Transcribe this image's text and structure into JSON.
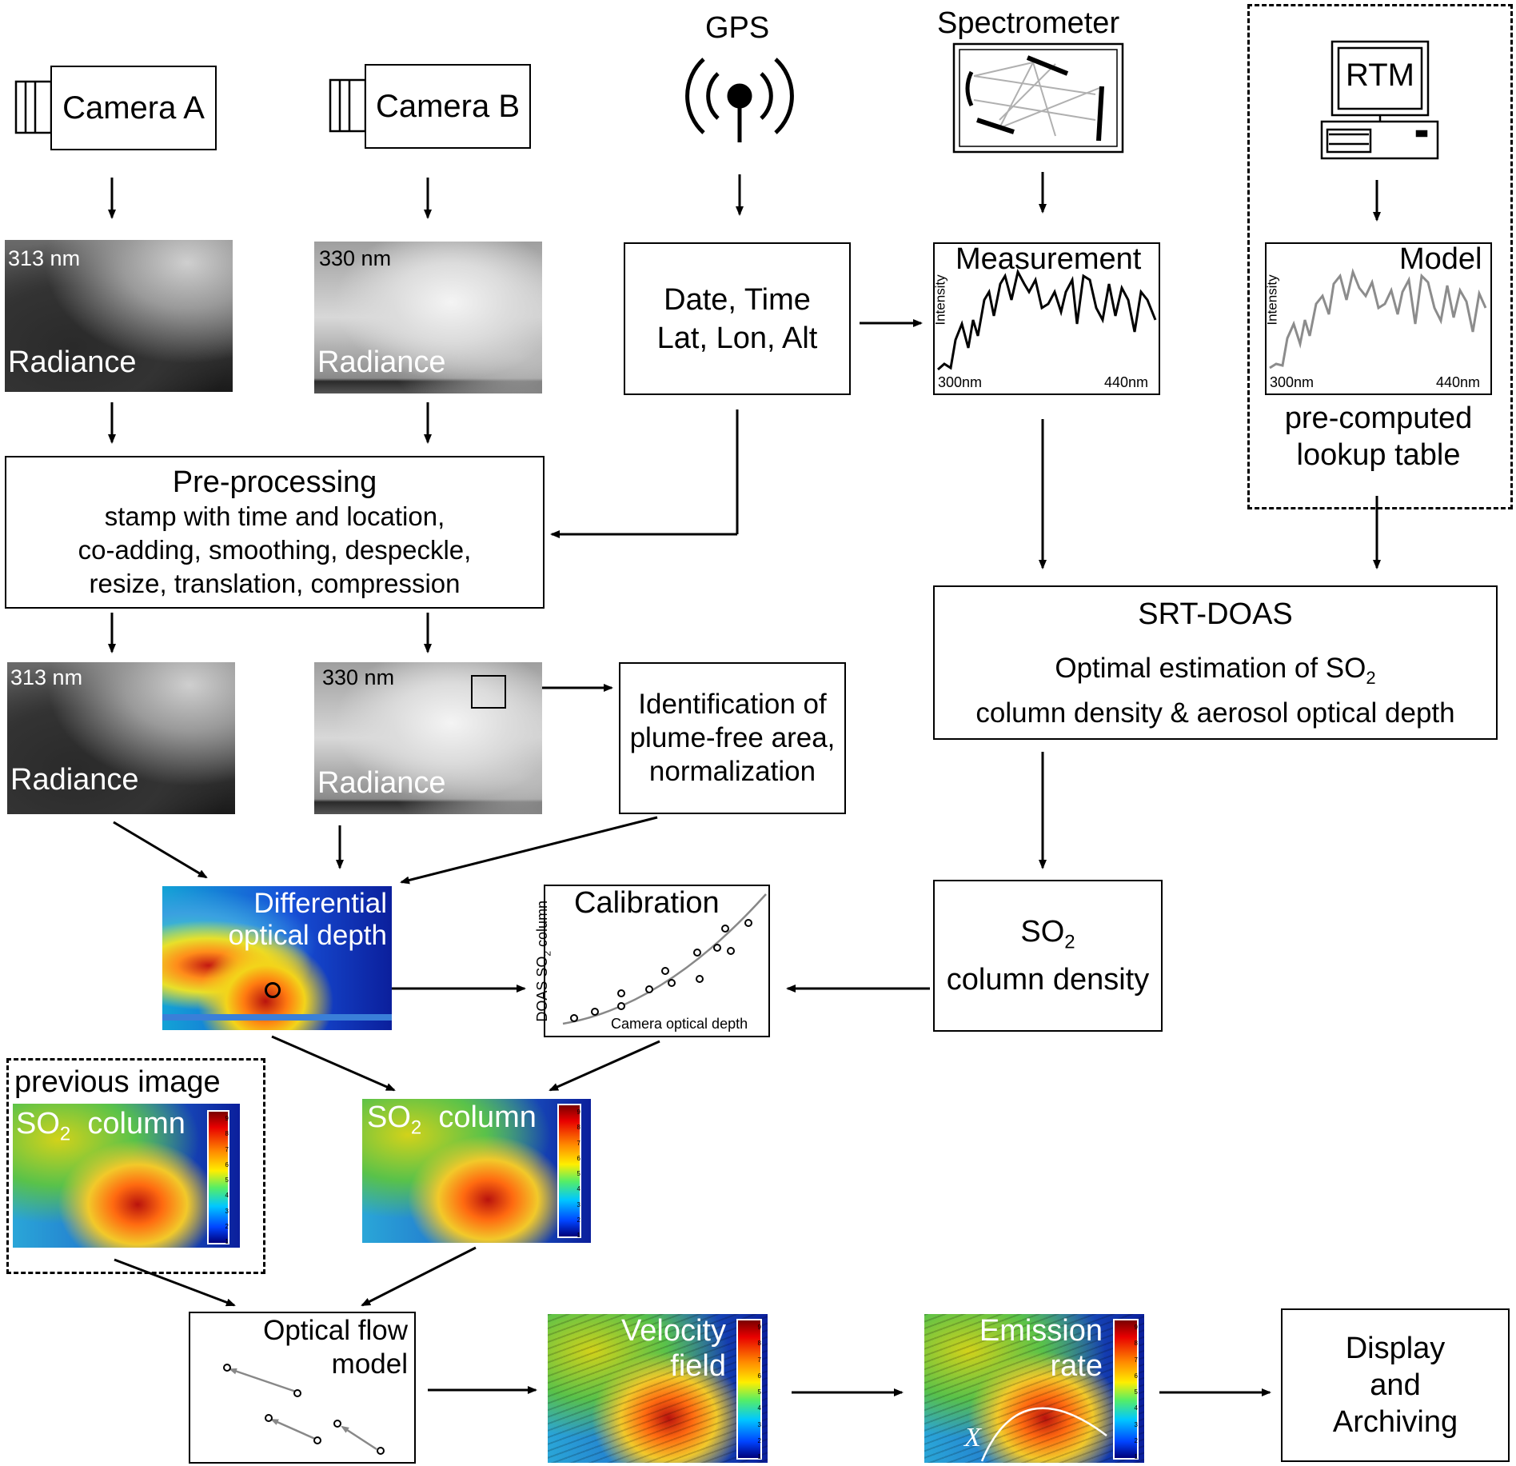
{
  "sources": {
    "camera_a": "Camera A",
    "camera_b": "Camera B",
    "gps": "GPS",
    "spectrometer": "Spectrometer",
    "rtm": "RTM"
  },
  "images": {
    "radiance_a_wavelength": "313 nm",
    "radiance_b_wavelength": "330 nm",
    "radiance_label": "Radiance"
  },
  "gps_output": {
    "line1": "Date, Time",
    "line2": "Lat, Lon, Alt"
  },
  "measurement": {
    "title": "Measurement",
    "ylabel": "Intensity",
    "x_start": "300nm",
    "x_end": "440nm"
  },
  "model": {
    "title": "Model",
    "ylabel": "Intensity",
    "x_start": "300nm",
    "x_end": "440nm",
    "caption1": "pre-computed",
    "caption2": "lookup table"
  },
  "preprocessing": {
    "title": "Pre-processing",
    "line1": "stamp with time and location,",
    "line2": "co-adding, smoothing, despeckle,",
    "line3": "resize, translation, compression"
  },
  "identification": {
    "line1": "Identification of",
    "line2": "plume-free area,",
    "line3": "normalization"
  },
  "srt_doas": {
    "title": "SRT-DOAS",
    "line1_prefix": "Optimal estimation of SO",
    "line1_sub": "2",
    "line2": "column density & aerosol optical depth"
  },
  "diff_od": {
    "line1": "Differential",
    "line2": "optical depth"
  },
  "calibration": {
    "title": "Calibration",
    "xlabel": "Camera optical depth",
    "ylabel_prefix": "DOAS SO",
    "ylabel_sub": "2",
    "ylabel_suffix": " column"
  },
  "so2_density": {
    "prefix": "SO",
    "sub": "2",
    "line2": "column density"
  },
  "so2_column": {
    "prefix": "SO",
    "sub": "2",
    "suffix": "column"
  },
  "previous_image": "previous image",
  "optical_flow": {
    "line1": "Optical flow",
    "line2": "model"
  },
  "velocity": {
    "line1": "Velocity",
    "line2": "field"
  },
  "emission": {
    "line1": "Emission",
    "line2": "rate",
    "x_symbol": "X"
  },
  "display": {
    "line1": "Display",
    "line2": "and",
    "line3": "Archiving"
  },
  "colorbar_ticks": [
    "9",
    "8",
    "7",
    "6",
    "5",
    "4",
    "3",
    "2",
    "1"
  ]
}
